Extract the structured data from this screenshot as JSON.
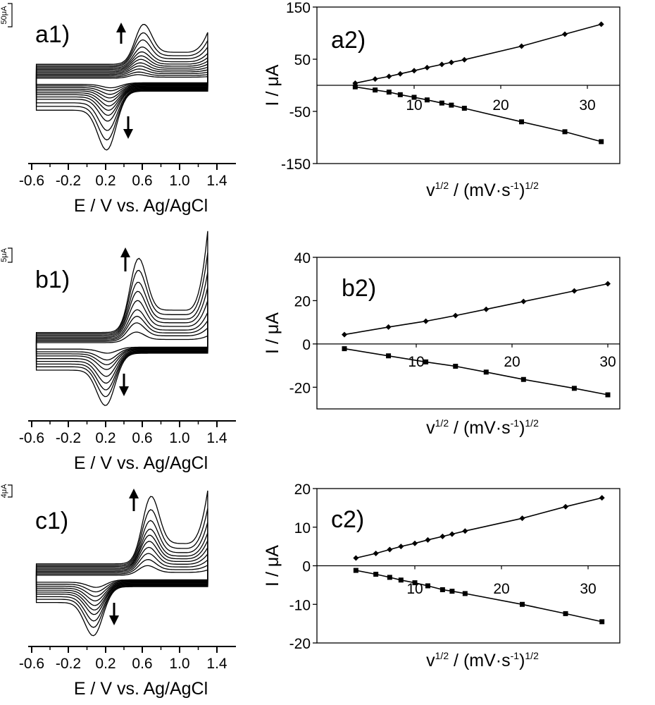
{
  "chart_data": [
    {
      "type": "line",
      "panel_label": "a1)",
      "scale_bar": "50μA",
      "xlabel": "E / V vs. Ag/AgCl",
      "xlim": [
        -0.8,
        1.5
      ],
      "x_ticks": [
        "-0.6",
        "-0.2",
        "0.2",
        "0.6",
        "1.0",
        "1.4"
      ],
      "ox_peak_potential": 0.6,
      "red_peak_potential": 0.22,
      "peak_currents_ox": [
        8,
        11,
        15,
        19,
        23,
        28,
        33,
        39,
        47,
        60,
        73,
        89
      ],
      "peak_currents_red": [
        7,
        10,
        14,
        18,
        22,
        27,
        32,
        38,
        45,
        57,
        69,
        82
      ]
    },
    {
      "type": "scatter",
      "panel_label": "a2)",
      "xlabel_parts": [
        "v",
        "1/2",
        " / (mV·s",
        "-1",
        ")",
        "1/2"
      ],
      "ylabel": "I / μA",
      "xlim": [
        0,
        35
      ],
      "ylim": [
        -150,
        150
      ],
      "x_ticks": [
        "10",
        "20",
        "30"
      ],
      "y_ticks": [
        "150",
        "50",
        "-50",
        "-150"
      ],
      "series": [
        {
          "marker": "diamond",
          "x": [
            3.2,
            5.5,
            7.1,
            8.4,
            10,
            11.5,
            13.2,
            14.3,
            15.8,
            22.4,
            27.4,
            31.6
          ],
          "y": [
            4,
            12,
            17,
            22,
            28,
            34,
            40,
            44,
            49,
            75,
            98,
            117
          ]
        },
        {
          "marker": "square",
          "x": [
            3.2,
            5.5,
            7.1,
            8.4,
            10,
            11.5,
            13.2,
            14.3,
            15.8,
            22.4,
            27.4,
            31.6
          ],
          "y": [
            -3,
            -9,
            -13,
            -18,
            -23,
            -28,
            -34,
            -38,
            -44,
            -70,
            -89,
            -108
          ]
        }
      ]
    },
    {
      "type": "line",
      "panel_label": "b1)",
      "scale_bar": "5μA",
      "xlabel": "E / V vs. Ag/AgCl",
      "xlim": [
        -0.8,
        1.5
      ],
      "x_ticks": [
        "-0.6",
        "-0.2",
        "0.2",
        "0.6",
        "1.0",
        "1.4"
      ],
      "ox_peak_potential": 0.58,
      "red_peak_potential": 0.18,
      "peak_currents_ox": [
        4,
        7,
        9,
        11,
        14,
        17,
        20,
        24,
        28
      ],
      "peak_currents_red": [
        3,
        6,
        8,
        10,
        13,
        16,
        19,
        22,
        26
      ]
    },
    {
      "type": "scatter",
      "panel_label": "b2)",
      "xlabel_parts": [
        "v",
        "1/2",
        " / (mV·s",
        "-1",
        ")",
        "1/2"
      ],
      "ylabel": "I / μA",
      "xlim": [
        0,
        34
      ],
      "ylim": [
        -30,
        40
      ],
      "x_ticks": [
        "10",
        "20",
        "30"
      ],
      "y_ticks": [
        "40",
        "20",
        "0",
        "-20"
      ],
      "series": [
        {
          "marker": "diamond",
          "x": [
            2.5,
            7.1,
            11,
            14.1,
            17.3,
            21.2,
            26.5,
            30
          ],
          "y": [
            4.3,
            7.8,
            10.5,
            13.1,
            16,
            19.6,
            24.5,
            27.8
          ]
        },
        {
          "marker": "square",
          "x": [
            2.5,
            7.1,
            11,
            14.1,
            17.3,
            21.2,
            26.5,
            30
          ],
          "y": [
            -2.2,
            -5.5,
            -8.3,
            -10.3,
            -13,
            -16.4,
            -20.5,
            -23.5
          ]
        }
      ]
    },
    {
      "type": "line",
      "panel_label": "c1)",
      "scale_bar": "4μA",
      "xlabel": "E / V vs. Ag/AgCl",
      "xlim": [
        -0.8,
        1.5
      ],
      "x_ticks": [
        "-0.6",
        "-0.2",
        "0.2",
        "0.6",
        "1.0",
        "1.4"
      ],
      "ox_peak_potential": 0.7,
      "red_peak_potential": 0.06,
      "peak_currents_ox": [
        4,
        6,
        8,
        10,
        12,
        14,
        16,
        19,
        23,
        28
      ],
      "peak_currents_red": [
        4,
        6,
        8,
        10,
        12,
        14,
        16,
        19,
        22,
        26
      ]
    },
    {
      "type": "scatter",
      "panel_label": "c2)",
      "xlabel_parts": [
        "v",
        "1/2",
        " / (mV·s",
        "-1",
        ")",
        "1/2"
      ],
      "ylabel": "I / μA",
      "xlim": [
        0,
        35
      ],
      "ylim": [
        -20,
        20
      ],
      "x_ticks": [
        "10",
        "20",
        "30"
      ],
      "y_ticks": [
        "20",
        "10",
        "0",
        "-10",
        "-20"
      ],
      "series": [
        {
          "marker": "diamond",
          "x": [
            3.2,
            5.5,
            7.1,
            8.4,
            10,
            11.5,
            13.2,
            14.3,
            15.8,
            22.4,
            27.4,
            31.6
          ],
          "y": [
            2,
            3.2,
            4.2,
            5,
            5.8,
            6.7,
            7.6,
            8.2,
            9,
            12.3,
            15.3,
            17.6
          ]
        },
        {
          "marker": "square",
          "x": [
            3.2,
            5.5,
            7.1,
            8.4,
            10,
            11.5,
            13.2,
            14.3,
            15.8,
            22.4,
            27.4,
            31.6
          ],
          "y": [
            -1.2,
            -2.2,
            -3,
            -3.7,
            -4.4,
            -5.2,
            -6.2,
            -6.6,
            -7.2,
            -10,
            -12.4,
            -14.5
          ]
        }
      ]
    }
  ]
}
